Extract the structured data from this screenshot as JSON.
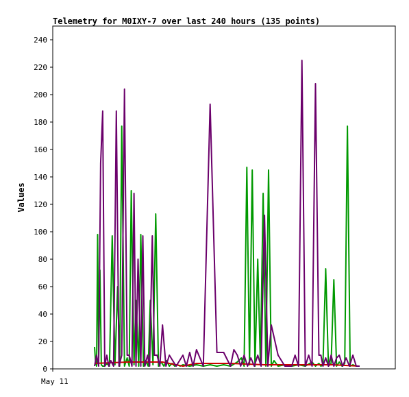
{
  "chart_data": {
    "type": "line",
    "title": "Telemetry for M0IXY-7 over last 240 hours (135 points)",
    "xlabel": "",
    "ylabel": "Values",
    "ylim": [
      0,
      250
    ],
    "y_ticks": [
      0,
      20,
      40,
      60,
      80,
      100,
      120,
      140,
      160,
      180,
      200,
      220,
      240
    ],
    "x_tick_labels": [
      "May 11"
    ],
    "grid": false,
    "legend": false,
    "colors": {
      "series1": "#009900",
      "series2": "#cc0000",
      "series3": "#6b006b"
    },
    "series": [
      {
        "color": "#009900",
        "x": [
          0.0,
          0.15,
          0.3,
          0.45,
          0.6,
          0.8,
          1.0,
          1.2,
          1.5,
          1.8,
          2.2,
          2.6,
          3.0,
          3.4,
          3.7,
          4.0,
          4.4,
          4.8,
          5.1,
          5.4,
          5.8,
          6.1,
          6.5,
          6.8,
          7.2,
          7.5,
          7.9,
          8.2,
          8.6,
          9.0,
          9.4,
          9.8,
          10.2,
          10.6,
          11.0,
          11.4,
          11.8,
          12.2,
          12.6,
          13.0,
          14.0,
          15.0,
          16.0,
          17.0,
          18.0,
          19.0,
          20.0,
          21.0,
          21.6,
          22.0,
          22.4,
          22.8,
          23.2,
          23.6,
          24.0,
          24.4,
          24.8,
          25.2,
          25.6,
          26.0,
          26.4,
          27.0,
          28.0,
          29.0,
          30.0,
          31.0,
          32.0,
          32.5,
          33.0,
          33.3,
          33.6,
          34.0,
          34.4,
          34.8,
          35.2,
          35.6,
          36.0,
          36.4,
          36.8,
          37.2,
          37.6,
          38.0,
          38.5,
          39.0
        ],
        "y": [
          16,
          5,
          2,
          98,
          8,
          72,
          3,
          2,
          2,
          4,
          2,
          97,
          3,
          60,
          2,
          177,
          2,
          8,
          2,
          130,
          3,
          50,
          2,
          98,
          2,
          6,
          2,
          50,
          3,
          113,
          2,
          5,
          2,
          6,
          2,
          4,
          2,
          3,
          2,
          3,
          2,
          3,
          2,
          3,
          2,
          3,
          2,
          5,
          8,
          2,
          147,
          3,
          145,
          2,
          80,
          3,
          128,
          2,
          145,
          2,
          6,
          2,
          3,
          2,
          3,
          2,
          5,
          2,
          4,
          2,
          3,
          73,
          2,
          4,
          65,
          2,
          5,
          2,
          4,
          177,
          2,
          3,
          2,
          2
        ]
      },
      {
        "color": "#cc0000",
        "x": [
          0.0,
          5.0,
          10.0,
          13.0,
          15.0,
          20.0,
          25.0,
          30.0,
          35.0,
          39.0
        ],
        "y": [
          4,
          5,
          5,
          2,
          4,
          4,
          3,
          3,
          3,
          2
        ]
      },
      {
        "color": "#6b006b",
        "x": [
          0.0,
          0.3,
          0.6,
          0.9,
          1.2,
          1.5,
          1.8,
          2.1,
          2.4,
          2.8,
          3.2,
          3.6,
          4.0,
          4.4,
          4.8,
          5.1,
          5.5,
          5.8,
          6.1,
          6.4,
          6.8,
          7.1,
          7.4,
          7.8,
          8.1,
          8.5,
          8.8,
          9.2,
          9.6,
          10.0,
          10.5,
          11.0,
          12.0,
          13.0,
          13.5,
          14.0,
          14.5,
          15.0,
          16.0,
          17.0,
          18.0,
          19.0,
          20.0,
          20.5,
          21.0,
          21.5,
          22.0,
          22.5,
          23.0,
          23.5,
          24.0,
          24.5,
          25.0,
          25.5,
          26.0,
          27.0,
          28.0,
          29.0,
          29.5,
          30.0,
          30.5,
          31.0,
          31.5,
          32.0,
          32.5,
          33.0,
          33.3,
          33.6,
          34.0,
          34.4,
          34.8,
          35.2,
          35.6,
          36.0,
          36.5,
          37.0,
          37.5,
          38.0,
          38.5,
          39.0
        ],
        "y": [
          2,
          10,
          2,
          150,
          188,
          2,
          10,
          2,
          6,
          2,
          188,
          2,
          10,
          204,
          10,
          10,
          2,
          128,
          2,
          80,
          2,
          97,
          2,
          10,
          2,
          97,
          10,
          10,
          2,
          32,
          2,
          10,
          2,
          10,
          2,
          12,
          2,
          14,
          2,
          193,
          12,
          12,
          2,
          14,
          10,
          2,
          10,
          2,
          8,
          2,
          10,
          2,
          112,
          2,
          32,
          10,
          2,
          2,
          10,
          2,
          225,
          2,
          10,
          2,
          208,
          10,
          10,
          2,
          8,
          2,
          10,
          2,
          8,
          10,
          2,
          8,
          2,
          10,
          2,
          2
        ]
      }
    ]
  }
}
